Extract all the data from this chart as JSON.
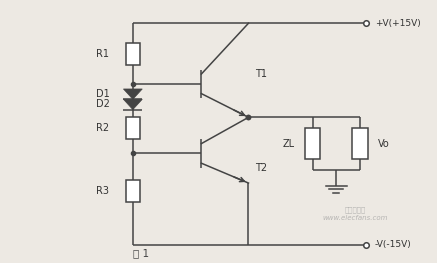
{
  "bg_color": "#ede9e3",
  "line_color": "#444444",
  "title": "图 1",
  "label_V_pos": "+V(+15V)",
  "label_V_neg": "-V(-15V)",
  "watermark_line1": "电子发烧友",
  "watermark_line2": "www.elecfans.com"
}
